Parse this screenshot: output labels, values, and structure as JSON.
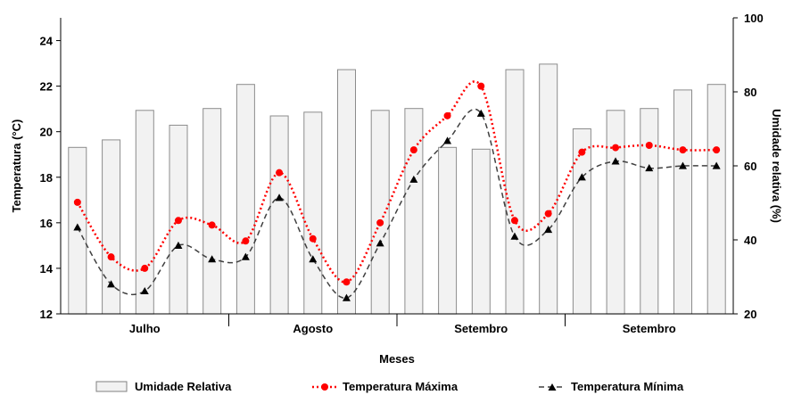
{
  "chart_data": {
    "type": "bar-line",
    "xlabel": "Meses",
    "ylabel_left": "Temperatura (°C)",
    "ylabel_right": "Umidade relativa (%)",
    "ylim_left": [
      12,
      25
    ],
    "yticks_left": [
      "12",
      "14",
      "16",
      "18",
      "20",
      "22",
      "24"
    ],
    "ylim_right": [
      20,
      100
    ],
    "yticks_right": [
      "20",
      "40",
      "60",
      "80",
      "100"
    ],
    "month_groups": [
      {
        "label": "Julho",
        "count": 5
      },
      {
        "label": "Agosto",
        "count": 5
      },
      {
        "label": "Setembro",
        "count": 5
      },
      {
        "label": "Setembro",
        "count": 5
      }
    ],
    "series": [
      {
        "name": "Umidade Relativa",
        "axis": "right",
        "kind": "bar",
        "color": "#f2f2f2",
        "values": [
          65,
          67,
          75,
          71,
          75.5,
          82,
          73.5,
          74.5,
          86,
          75,
          75.5,
          65,
          64.5,
          86,
          87.5,
          70,
          75,
          75.5,
          80.5,
          82
        ]
      },
      {
        "name": "Temperatura Máxima",
        "axis": "left",
        "kind": "line-dotted",
        "color": "#ff0000",
        "values": [
          16.9,
          14.5,
          14.0,
          16.1,
          15.9,
          15.2,
          18.2,
          15.3,
          13.4,
          16.0,
          19.2,
          20.7,
          22.0,
          16.1,
          16.4,
          19.1,
          19.3,
          19.4,
          19.2,
          19.2
        ]
      },
      {
        "name": "Temperatura Mínima",
        "axis": "left",
        "kind": "line-dashed",
        "color": "#404040",
        "values": [
          15.8,
          13.3,
          13.0,
          15.0,
          14.4,
          14.5,
          17.1,
          14.4,
          12.7,
          15.1,
          17.9,
          19.6,
          20.8,
          15.4,
          15.7,
          18.0,
          18.7,
          18.4,
          18.5,
          18.5
        ]
      }
    ],
    "legend_position": "bottom"
  }
}
